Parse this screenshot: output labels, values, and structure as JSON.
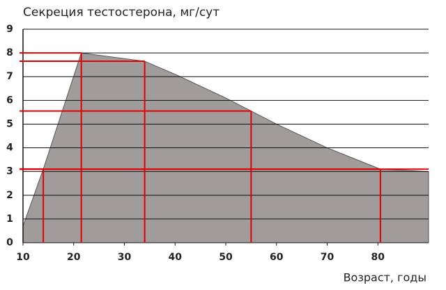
{
  "chart_data": {
    "type": "area",
    "title": "Секреция тестостерона, мг/сут",
    "x_label": "Возраст, годы",
    "x": [
      10,
      14,
      21.5,
      34,
      40,
      50,
      55,
      60,
      70,
      80.5,
      90
    ],
    "values": [
      0.7,
      3.1,
      8,
      7.65,
      7.1,
      6.1,
      5.55,
      5.0,
      4.0,
      3.1,
      3.0
    ],
    "color": "#a09c9c",
    "xlim": [
      10,
      90
    ],
    "xticks": [
      10,
      20,
      30,
      40,
      50,
      60,
      70,
      80
    ],
    "ylim": [
      0,
      9
    ],
    "yticks": [
      0,
      1,
      2,
      3,
      4,
      5,
      6,
      7,
      8,
      9
    ],
    "grid": true,
    "markers": [
      {
        "x": 14,
        "y": 3.1
      },
      {
        "x": 21.5,
        "y": 8
      },
      {
        "x": 34,
        "y": 7.65
      },
      {
        "x": 55,
        "y": 5.55
      },
      {
        "x": 80.5,
        "y": 3.1
      }
    ],
    "hlines": [
      3.1
    ],
    "marker_color": "#e00000"
  }
}
